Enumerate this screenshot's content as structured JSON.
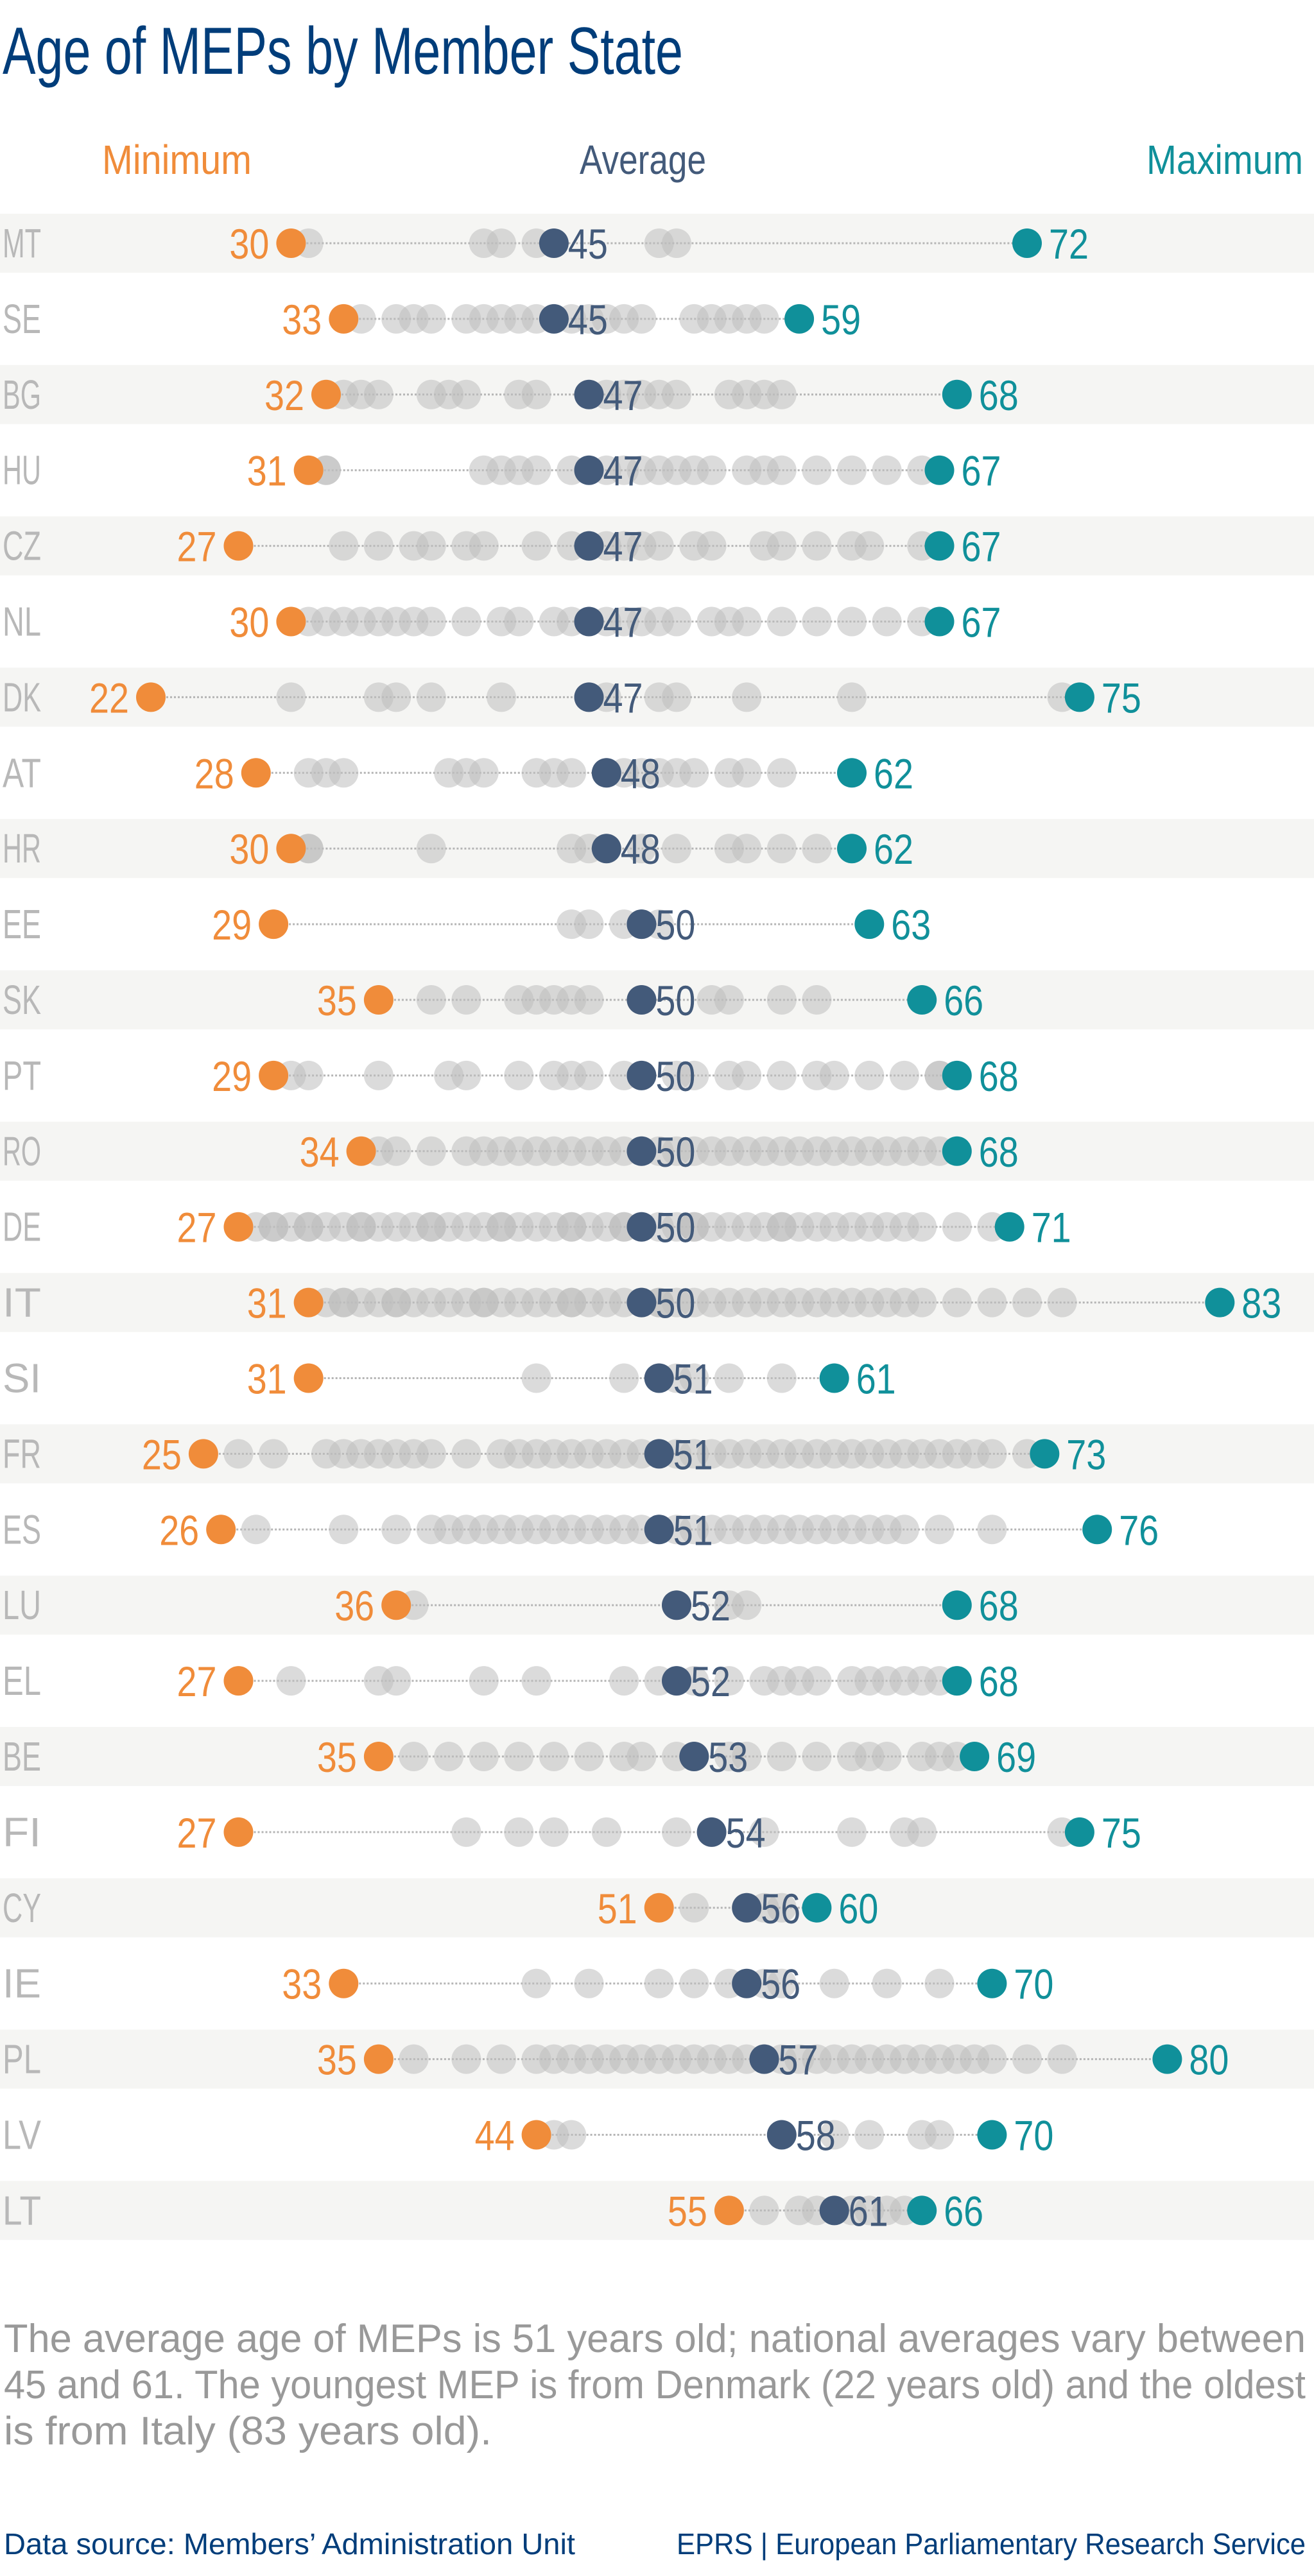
{
  "title": "Age of MEPs by Member State",
  "legend": {
    "minimum": "Minimum",
    "average": "Average",
    "maximum": "Maximum"
  },
  "colors": {
    "title": "#003d7a",
    "minimum": "#f08c3a",
    "average": "#435a7a",
    "maximum": "#10909a",
    "member": "#bdbdbd",
    "country": "#b8b8b8",
    "band": "#f5f5f3",
    "note": "#999999",
    "footer": "#003d7a"
  },
  "footnote": {
    "line1": "The average age of MEPs is 51 years old; national averages vary between",
    "line2": "45 and 61. The youngest MEP is from Denmark (22 years old) and the oldest",
    "line3": "is from Italy (83 years old)."
  },
  "footer": {
    "source": "Data source:  Members’ Administration Unit",
    "publisher": "EPRS | European Parliamentary Research Service"
  },
  "chart_data": {
    "type": "dot",
    "title": "Age of MEPs by Member State",
    "xlim": [
      22,
      83
    ],
    "grid": false,
    "legend_placement": "top",
    "rows": [
      {
        "country": "MT",
        "min": 30,
        "avg": 45,
        "max": 72,
        "members": [
          31,
          41,
          42,
          44,
          51,
          52
        ]
      },
      {
        "country": "SE",
        "min": 33,
        "avg": 45,
        "max": 59,
        "members": [
          34,
          36,
          37,
          38,
          40,
          41,
          42,
          43,
          44,
          46,
          47,
          48,
          49,
          50,
          53,
          54,
          55,
          56,
          57
        ]
      },
      {
        "country": "BG",
        "min": 32,
        "avg": 47,
        "max": 68,
        "members": [
          33,
          34,
          35,
          38,
          39,
          40,
          43,
          44,
          48,
          49,
          50,
          51,
          52,
          55,
          56,
          57,
          58
        ]
      },
      {
        "country": "HU",
        "min": 31,
        "avg": 47,
        "max": 67,
        "members": [
          32,
          32,
          41,
          42,
          43,
          44,
          46,
          48,
          49,
          50,
          51,
          52,
          53,
          54,
          56,
          57,
          58,
          60,
          62,
          64,
          66
        ]
      },
      {
        "country": "CZ",
        "min": 27,
        "avg": 47,
        "max": 67,
        "members": [
          33,
          35,
          37,
          38,
          40,
          41,
          44,
          46,
          48,
          49,
          50,
          51,
          53,
          54,
          57,
          58,
          60,
          62,
          63,
          66
        ]
      },
      {
        "country": "NL",
        "min": 30,
        "avg": 47,
        "max": 67,
        "members": [
          31,
          32,
          33,
          34,
          35,
          36,
          37,
          38,
          40,
          42,
          43,
          45,
          46,
          48,
          49,
          50,
          51,
          52,
          54,
          55,
          56,
          58,
          60,
          62,
          64,
          66
        ]
      },
      {
        "country": "DK",
        "min": 22,
        "avg": 47,
        "max": 75,
        "members": [
          30,
          35,
          36,
          38,
          42,
          47,
          48,
          51,
          52,
          56,
          62,
          74
        ]
      },
      {
        "country": "AT",
        "min": 28,
        "avg": 48,
        "max": 62,
        "members": [
          31,
          32,
          33,
          39,
          40,
          41,
          44,
          45,
          46,
          48,
          49,
          50,
          51,
          52,
          53,
          55,
          56,
          58
        ]
      },
      {
        "country": "HR",
        "min": 30,
        "avg": 48,
        "max": 62,
        "members": [
          31,
          31,
          38,
          46,
          47,
          50,
          52,
          55,
          56,
          58,
          60
        ]
      },
      {
        "country": "EE",
        "min": 29,
        "avg": 50,
        "max": 63,
        "members": [
          46,
          47,
          49,
          50,
          51
        ]
      },
      {
        "country": "SK",
        "min": 35,
        "avg": 50,
        "max": 66,
        "members": [
          38,
          40,
          43,
          44,
          45,
          46,
          47,
          50,
          54,
          55,
          58,
          60
        ]
      },
      {
        "country": "PT",
        "min": 29,
        "avg": 50,
        "max": 68,
        "members": [
          30,
          31,
          35,
          39,
          40,
          43,
          45,
          46,
          47,
          49,
          52,
          53,
          55,
          56,
          58,
          60,
          61,
          63,
          65,
          67,
          67
        ]
      },
      {
        "country": "RO",
        "min": 34,
        "avg": 50,
        "max": 68,
        "members": [
          35,
          36,
          38,
          40,
          41,
          42,
          43,
          44,
          45,
          46,
          47,
          48,
          49,
          50,
          51,
          52,
          53,
          54,
          55,
          56,
          57,
          58,
          59,
          60,
          61,
          62,
          63,
          64,
          65,
          66,
          67
        ]
      },
      {
        "country": "DE",
        "min": 27,
        "avg": 50,
        "max": 71,
        "members": [
          28,
          29,
          29,
          30,
          31,
          31,
          32,
          33,
          34,
          34,
          35,
          36,
          37,
          38,
          38,
          39,
          40,
          41,
          42,
          42,
          43,
          44,
          45,
          46,
          46,
          47,
          48,
          49,
          49,
          50,
          51,
          52,
          53,
          53,
          54,
          55,
          56,
          57,
          58,
          58,
          59,
          60,
          61,
          62,
          63,
          64,
          65,
          66,
          68,
          70
        ]
      },
      {
        "country": "IT",
        "min": 31,
        "avg": 50,
        "max": 83,
        "members": [
          32,
          33,
          33,
          34,
          35,
          36,
          36,
          37,
          38,
          39,
          40,
          41,
          41,
          42,
          43,
          44,
          45,
          46,
          46,
          47,
          48,
          49,
          50,
          51,
          51,
          52,
          53,
          54,
          55,
          56,
          57,
          58,
          59,
          60,
          61,
          62,
          63,
          64,
          65,
          66,
          68,
          70,
          72,
          74
        ]
      },
      {
        "country": "SI",
        "min": 31,
        "avg": 51,
        "max": 61,
        "members": [
          44,
          49,
          52,
          53,
          55,
          58
        ]
      },
      {
        "country": "FR",
        "min": 25,
        "avg": 51,
        "max": 73,
        "members": [
          27,
          29,
          32,
          33,
          34,
          35,
          36,
          37,
          38,
          40,
          42,
          43,
          44,
          45,
          46,
          47,
          48,
          49,
          50,
          51,
          52,
          53,
          54,
          55,
          56,
          57,
          58,
          59,
          60,
          61,
          62,
          63,
          64,
          65,
          66,
          67,
          68,
          69,
          70,
          72
        ]
      },
      {
        "country": "ES",
        "min": 26,
        "avg": 51,
        "max": 76,
        "members": [
          28,
          33,
          36,
          38,
          39,
          40,
          41,
          42,
          43,
          44,
          45,
          46,
          47,
          48,
          49,
          50,
          51,
          52,
          53,
          54,
          55,
          56,
          57,
          58,
          59,
          60,
          61,
          62,
          63,
          64,
          65,
          67,
          70
        ]
      },
      {
        "country": "LU",
        "min": 36,
        "avg": 52,
        "max": 68,
        "members": [
          37,
          52,
          55,
          56
        ]
      },
      {
        "country": "EL",
        "min": 27,
        "avg": 52,
        "max": 68,
        "members": [
          30,
          35,
          36,
          41,
          44,
          49,
          51,
          53,
          55,
          57,
          58,
          59,
          60,
          62,
          63,
          64,
          65,
          66,
          67,
          68
        ]
      },
      {
        "country": "BE",
        "min": 35,
        "avg": 53,
        "max": 69,
        "members": [
          37,
          39,
          41,
          43,
          45,
          47,
          49,
          50,
          52,
          53,
          55,
          56,
          58,
          60,
          62,
          63,
          64,
          66,
          67,
          68
        ]
      },
      {
        "country": "FI",
        "min": 27,
        "avg": 54,
        "max": 75,
        "members": [
          40,
          43,
          45,
          48,
          52,
          54,
          57,
          62,
          65,
          66,
          74
        ]
      },
      {
        "country": "CY",
        "min": 51,
        "avg": 56,
        "max": 60,
        "members": [
          53,
          56,
          57,
          58
        ]
      },
      {
        "country": "IE",
        "min": 33,
        "avg": 56,
        "max": 70,
        "members": [
          44,
          47,
          51,
          53,
          55,
          57,
          58,
          61,
          64,
          67
        ]
      },
      {
        "country": "PL",
        "min": 35,
        "avg": 57,
        "max": 80,
        "members": [
          37,
          40,
          42,
          44,
          45,
          46,
          47,
          48,
          49,
          50,
          51,
          52,
          53,
          54,
          55,
          56,
          57,
          58,
          59,
          60,
          61,
          62,
          63,
          64,
          65,
          66,
          67,
          68,
          69,
          70,
          72,
          74
        ]
      },
      {
        "country": "LV",
        "min": 44,
        "avg": 58,
        "max": 70,
        "members": [
          45,
          46,
          61,
          63,
          66,
          67
        ]
      },
      {
        "country": "LT",
        "min": 55,
        "avg": 61,
        "max": 66,
        "members": [
          57,
          59,
          60,
          62,
          63,
          64,
          65,
          66
        ]
      }
    ]
  }
}
